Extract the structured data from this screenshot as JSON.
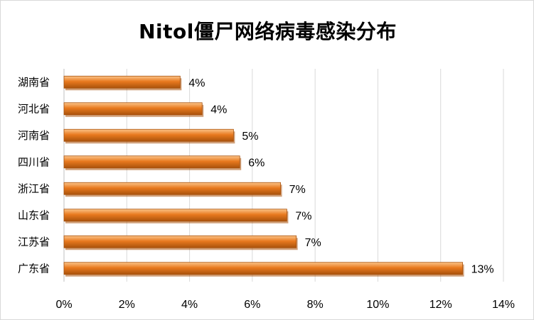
{
  "chart_data": {
    "type": "bar",
    "orientation": "horizontal",
    "title": "Nitol僵尸网络病毒感染分布",
    "categories": [
      "湖南省",
      "河北省",
      "河南省",
      "四川省",
      "浙江省",
      "山东省",
      "江苏省",
      "广东省"
    ],
    "values": [
      3.7,
      4.4,
      5.4,
      5.6,
      6.9,
      7.1,
      7.4,
      12.7
    ],
    "data_labels": [
      "4%",
      "4%",
      "5%",
      "6%",
      "7%",
      "7%",
      "7%",
      "13%"
    ],
    "x_ticks": [
      "0%",
      "2%",
      "4%",
      "6%",
      "8%",
      "10%",
      "12%",
      "14%"
    ],
    "xlim": [
      0,
      14
    ],
    "grid": true,
    "bar_color": "#e8791e",
    "bar_highlight": "#fbc489",
    "bar_shadow": "#a9520c",
    "legend": "none"
  }
}
